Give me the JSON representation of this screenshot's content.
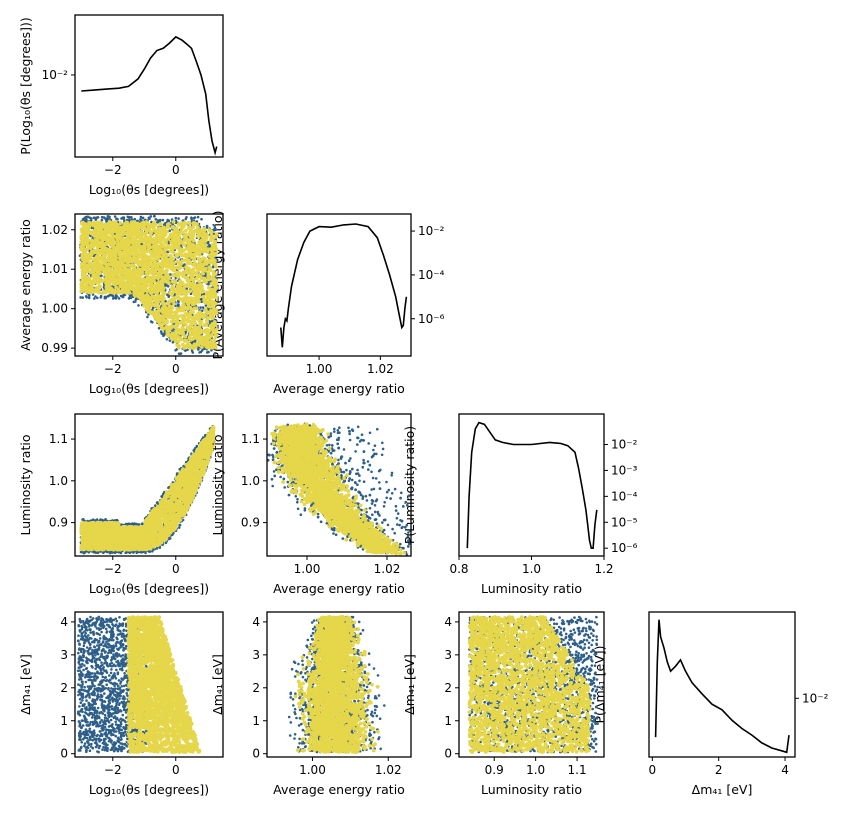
{
  "colors": {
    "outer": "#2e5f8a",
    "inner": "#e5d64a",
    "line": "#000000",
    "frame": "#000000"
  },
  "axis_labels": {
    "theta": "Log₁₀(θs [degrees])",
    "energy": "Average energy ratio",
    "lum": "Luminosity ratio",
    "dm": "Δm₄₁ [eV]",
    "p_theta": "P(Log₁₀(θs [degrees]))",
    "p_energy": "P(Average energy ratio)",
    "p_lum": "P(Luminosity ratio)",
    "p_dm": "P(Δm₄₁ [eV])"
  },
  "chart_data": [
    {
      "id": "hist_theta",
      "type": "line",
      "yscale": "log",
      "xlabel": "Log₁₀(θs [degrees])",
      "ylabel": "P(Log₁₀(θs [degrees]))",
      "xlim": [
        -3.2,
        1.5
      ],
      "ylim": [
        0.0034,
        0.022
      ],
      "xticks": [
        {
          "v": -2,
          "label": "−2"
        },
        {
          "v": 0,
          "label": "0"
        }
      ],
      "yticks": [
        {
          "v": 0.01,
          "label": "10⁻²"
        }
      ],
      "x": [
        -3.0,
        -2.6,
        -2.2,
        -1.8,
        -1.5,
        -1.2,
        -1.0,
        -0.8,
        -0.6,
        -0.4,
        -0.2,
        0.0,
        0.2,
        0.35,
        0.5,
        0.65,
        0.8,
        0.95,
        1.05,
        1.15,
        1.25,
        1.3
      ],
      "y": [
        0.0081,
        0.0082,
        0.0083,
        0.0084,
        0.0086,
        0.0095,
        0.0108,
        0.0125,
        0.0138,
        0.0142,
        0.0152,
        0.0165,
        0.0158,
        0.015,
        0.0142,
        0.012,
        0.01,
        0.0078,
        0.0055,
        0.0042,
        0.0036,
        0.0039
      ]
    },
    {
      "id": "hist_energy",
      "type": "line",
      "yscale": "log",
      "xlabel": "Average energy ratio",
      "ylabel": "P(Average energy ratio)",
      "xlim": [
        0.983,
        1.03
      ],
      "ylim": [
        2e-08,
        0.06
      ],
      "xticks": [
        {
          "v": 1.0,
          "label": "1.00"
        },
        {
          "v": 1.02,
          "label": "1.02"
        }
      ],
      "yticks": [
        {
          "v": 0.01,
          "label": "10⁻²"
        },
        {
          "v": 0.0001,
          "label": "10⁻⁴"
        },
        {
          "v": 1e-06,
          "label": "10⁻⁶"
        }
      ],
      "x": [
        0.9875,
        0.988,
        0.9885,
        0.989,
        0.9895,
        0.99,
        0.991,
        0.993,
        0.995,
        0.997,
        1.0,
        1.004,
        1.008,
        1.012,
        1.016,
        1.019,
        1.021,
        1.023,
        1.025,
        1.026,
        1.027,
        1.0275,
        1.028,
        1.0285
      ],
      "y": [
        4e-07,
        5e-08,
        4e-07,
        1e-06,
        8e-07,
        3e-06,
        3e-05,
        0.0005,
        0.003,
        0.01,
        0.016,
        0.015,
        0.019,
        0.021,
        0.016,
        0.005,
        0.0008,
        0.0001,
        1e-05,
        2e-06,
        4e-07,
        5e-07,
        3e-06,
        1e-05
      ]
    },
    {
      "id": "hist_lum",
      "type": "line",
      "yscale": "log",
      "xlabel": "Luminosity ratio",
      "ylabel": "P(Luminosity ratio)",
      "xlim": [
        0.8,
        1.2
      ],
      "ylim": [
        5e-07,
        0.15
      ],
      "xticks": [
        {
          "v": 0.8,
          "label": "0.8"
        },
        {
          "v": 1.0,
          "label": "1.0"
        },
        {
          "v": 1.2,
          "label": "1.2"
        }
      ],
      "yticks": [
        {
          "v": 0.01,
          "label": "10⁻²"
        },
        {
          "v": 0.001,
          "label": "10⁻³"
        },
        {
          "v": 0.0001,
          "label": "10⁻⁴"
        },
        {
          "v": 1e-05,
          "label": "10⁻⁵"
        },
        {
          "v": 1e-06,
          "label": "10⁻⁶"
        }
      ],
      "x": [
        0.823,
        0.828,
        0.835,
        0.845,
        0.855,
        0.87,
        0.885,
        0.9,
        0.92,
        0.95,
        1.0,
        1.05,
        1.08,
        1.1,
        1.12,
        1.13,
        1.14,
        1.15,
        1.155,
        1.16,
        1.165,
        1.17,
        1.175,
        1.18
      ],
      "y": [
        1e-06,
        0.0001,
        0.005,
        0.04,
        0.07,
        0.06,
        0.03,
        0.015,
        0.012,
        0.01,
        0.01,
        0.012,
        0.011,
        0.009,
        0.005,
        0.0012,
        0.0002,
        3e-05,
        8e-06,
        2e-06,
        1e-06,
        1e-06,
        8e-06,
        3e-05
      ]
    },
    {
      "id": "hist_dm",
      "type": "line",
      "yscale": "log",
      "xlabel": "Δm₄₁ [eV]",
      "ylabel": "P(Δm₄₁ [eV])",
      "xlim": [
        -0.1,
        4.3
      ],
      "ylim": [
        0.0028,
        0.065
      ],
      "xticks": [
        {
          "v": 0,
          "label": "0"
        },
        {
          "v": 2,
          "label": "2"
        },
        {
          "v": 4,
          "label": "4"
        }
      ],
      "yticks": [
        {
          "v": 0.01,
          "label": "10⁻²"
        }
      ],
      "x": [
        0.1,
        0.15,
        0.2,
        0.25,
        0.35,
        0.45,
        0.55,
        0.7,
        0.85,
        1.0,
        1.2,
        1.5,
        1.8,
        2.1,
        2.4,
        2.7,
        3.0,
        3.3,
        3.6,
        3.9,
        4.05,
        4.12
      ],
      "y": [
        0.0043,
        0.022,
        0.055,
        0.038,
        0.03,
        0.022,
        0.018,
        0.02,
        0.023,
        0.018,
        0.014,
        0.011,
        0.0088,
        0.0078,
        0.0062,
        0.0052,
        0.0045,
        0.0038,
        0.0034,
        0.0032,
        0.0031,
        0.0045
      ]
    },
    {
      "id": "scatter_theta_energy",
      "type": "scatter",
      "shape": "band_fold",
      "xlabel": "Log₁₀(θs [degrees])",
      "ylabel": "Average energy ratio",
      "xlim": [
        -3.2,
        1.5
      ],
      "ylim": [
        0.988,
        1.024
      ],
      "xticks": [
        {
          "v": -2,
          "label": "−2"
        },
        {
          "v": 0,
          "label": "0"
        }
      ],
      "yticks": [
        {
          "v": 0.99,
          "label": "0.99"
        },
        {
          "v": 1.0,
          "label": "1.00"
        },
        {
          "v": 1.01,
          "label": "1.01"
        },
        {
          "v": 1.02,
          "label": "1.02"
        }
      ],
      "series": [
        {
          "name": "outer",
          "points": 1700
        },
        {
          "name": "inner",
          "points": 2400
        }
      ]
    },
    {
      "id": "scatter_theta_lum",
      "type": "scatter",
      "shape": "s_curve",
      "xlabel": "Log₁₀(θs [degrees])",
      "ylabel": "Luminosity ratio",
      "xlim": [
        -3.2,
        1.5
      ],
      "ylim": [
        0.82,
        1.16
      ],
      "xticks": [
        {
          "v": -2,
          "label": "−2"
        },
        {
          "v": 0,
          "label": "0"
        }
      ],
      "yticks": [
        {
          "v": 0.9,
          "label": "0.9"
        },
        {
          "v": 1.0,
          "label": "1.0"
        },
        {
          "v": 1.1,
          "label": "1.1"
        }
      ],
      "series": [
        {
          "name": "outer",
          "points": 1700
        },
        {
          "name": "inner",
          "points": 2400
        }
      ]
    },
    {
      "id": "scatter_energy_lum",
      "type": "scatter",
      "shape": "crescent",
      "xlabel": "Average energy ratio",
      "ylabel": "Luminosity ratio",
      "xlim": [
        0.99,
        1.026
      ],
      "ylim": [
        0.82,
        1.16
      ],
      "xticks": [
        {
          "v": 1.0,
          "label": "1.00"
        },
        {
          "v": 1.02,
          "label": "1.02"
        }
      ],
      "yticks": [
        {
          "v": 0.9,
          "label": "0.9"
        },
        {
          "v": 1.0,
          "label": "1.0"
        },
        {
          "v": 1.1,
          "label": "1.1"
        }
      ],
      "series": [
        {
          "name": "outer",
          "points": 1700
        },
        {
          "name": "inner",
          "points": 2400
        }
      ]
    },
    {
      "id": "scatter_theta_dm",
      "type": "scatter",
      "shape": "theta_dm",
      "xlabel": "Log₁₀(θs [degrees])",
      "ylabel": "Δm₄₁ [eV]",
      "xlim": [
        -3.2,
        1.5
      ],
      "ylim": [
        -0.1,
        4.3
      ],
      "xticks": [
        {
          "v": -2,
          "label": "−2"
        },
        {
          "v": 0,
          "label": "0"
        }
      ],
      "yticks": [
        {
          "v": 0,
          "label": "0"
        },
        {
          "v": 1,
          "label": "1"
        },
        {
          "v": 2,
          "label": "2"
        },
        {
          "v": 3,
          "label": "3"
        },
        {
          "v": 4,
          "label": "4"
        }
      ],
      "series": [
        {
          "name": "outer",
          "points": 1700
        },
        {
          "name": "inner",
          "points": 2400
        }
      ]
    },
    {
      "id": "scatter_energy_dm",
      "type": "scatter",
      "shape": "dome_energy",
      "xlabel": "Average energy ratio",
      "ylabel": "Δm₄₁ [eV]",
      "xlim": [
        0.988,
        1.026
      ],
      "ylim": [
        -0.1,
        4.3
      ],
      "xticks": [
        {
          "v": 1.0,
          "label": "1.00"
        },
        {
          "v": 1.02,
          "label": "1.02"
        }
      ],
      "yticks": [
        {
          "v": 0,
          "label": "0"
        },
        {
          "v": 1,
          "label": "1"
        },
        {
          "v": 2,
          "label": "2"
        },
        {
          "v": 3,
          "label": "3"
        },
        {
          "v": 4,
          "label": "4"
        }
      ],
      "series": [
        {
          "name": "outer",
          "points": 1700
        },
        {
          "name": "inner",
          "points": 2400
        }
      ]
    },
    {
      "id": "scatter_lum_dm",
      "type": "scatter",
      "shape": "lum_dm",
      "xlabel": "Luminosity ratio",
      "ylabel": "Δm₄₁ [eV]",
      "xlim": [
        0.815,
        1.165
      ],
      "ylim": [
        -0.1,
        4.3
      ],
      "xticks": [
        {
          "v": 0.9,
          "label": "0.9"
        },
        {
          "v": 1.0,
          "label": "1.0"
        },
        {
          "v": 1.1,
          "label": "1.1"
        }
      ],
      "yticks": [
        {
          "v": 0,
          "label": "0"
        },
        {
          "v": 1,
          "label": "1"
        },
        {
          "v": 2,
          "label": "2"
        },
        {
          "v": 3,
          "label": "3"
        },
        {
          "v": 4,
          "label": "4"
        }
      ],
      "series": [
        {
          "name": "outer",
          "points": 1700
        },
        {
          "name": "inner",
          "points": 2400
        }
      ]
    }
  ]
}
